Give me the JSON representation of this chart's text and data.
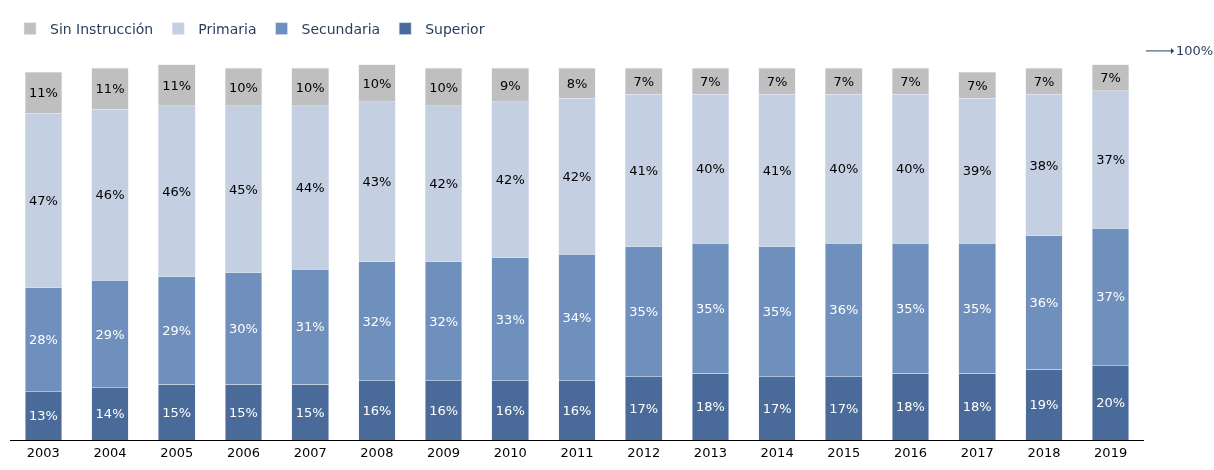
{
  "chart_data": {
    "type": "bar",
    "stacked": true,
    "categories": [
      "2003",
      "2004",
      "2005",
      "2006",
      "2007",
      "2008",
      "2009",
      "2010",
      "2011",
      "2012",
      "2013",
      "2014",
      "2015",
      "2016",
      "2017",
      "2018",
      "2019"
    ],
    "series": [
      {
        "name": "Superior",
        "color": "#4a6a9a",
        "values": [
          13,
          14,
          15,
          15,
          15,
          16,
          16,
          16,
          16,
          17,
          18,
          17,
          17,
          18,
          18,
          19,
          20
        ],
        "value_labels": [
          "13%",
          "14%",
          "15%",
          "15%",
          "15%",
          "16%",
          "16%",
          "16%",
          "16%",
          "17%",
          "18%",
          "17%",
          "17%",
          "18%",
          "18%",
          "19%",
          "20%"
        ]
      },
      {
        "name": "Secundaria",
        "color": "#6f8fbd",
        "values": [
          28,
          29,
          29,
          30,
          31,
          32,
          32,
          33,
          34,
          35,
          35,
          35,
          36,
          35,
          35,
          36,
          37
        ],
        "value_labels": [
          "28%",
          "29%",
          "29%",
          "30%",
          "31%",
          "32%",
          "32%",
          "33%",
          "34%",
          "35%",
          "35%",
          "35%",
          "36%",
          "35%",
          "35%",
          "36%",
          "37%"
        ]
      },
      {
        "name": "Primaria",
        "color": "#c5cfe2",
        "values": [
          47,
          46,
          46,
          45,
          44,
          43,
          42,
          42,
          42,
          41,
          40,
          41,
          40,
          40,
          39,
          38,
          37
        ],
        "value_labels": [
          "47%",
          "46%",
          "46%",
          "45%",
          "44%",
          "43%",
          "42%",
          "42%",
          "42%",
          "41%",
          "40%",
          "41%",
          "40%",
          "40%",
          "39%",
          "38%",
          "37%"
        ]
      },
      {
        "name": "Sin Instrucción",
        "color": "#bfbfbf",
        "values": [
          11,
          11,
          11,
          10,
          10,
          10,
          10,
          9,
          8,
          7,
          7,
          7,
          7,
          7,
          7,
          7,
          7
        ],
        "value_labels": [
          "11%",
          "11%",
          "11%",
          "10%",
          "10%",
          "10%",
          "10%",
          "9%",
          "8%",
          "7%",
          "7%",
          "7%",
          "7%",
          "7%",
          "7%",
          "7%",
          "7%"
        ]
      }
    ],
    "annotations": [
      "100%"
    ],
    "legend": "top left",
    "tick_labels": "x"
  }
}
